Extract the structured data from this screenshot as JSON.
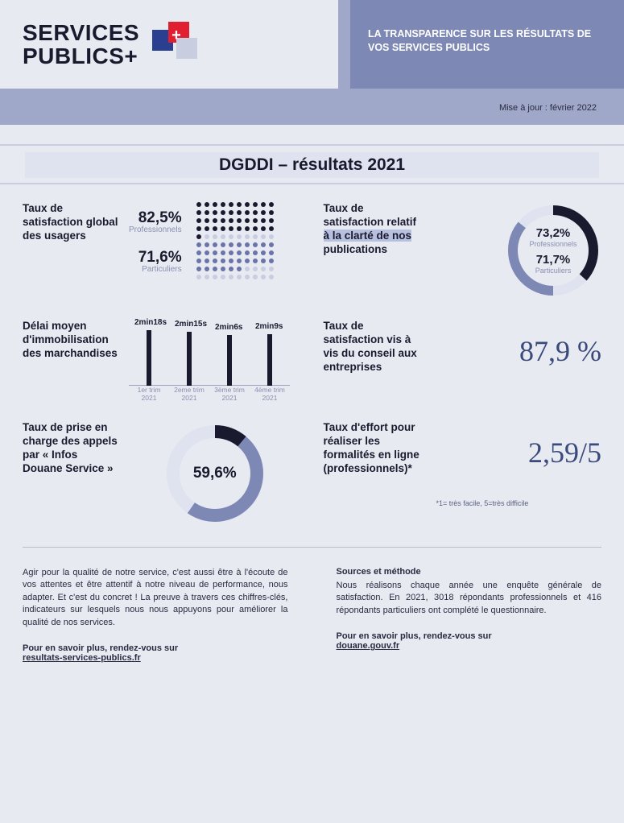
{
  "brand": {
    "line1": "SERVICES",
    "line2": "PUBLICS+"
  },
  "tagline": "LA TRANSPARENCE SUR LES RÉSULTATS DE VOS SERVICES PUBLICS",
  "update": "Mise à jour : février 2022",
  "title": "DGDDI – résultats 2021",
  "colors": {
    "dotFilledPro": "#1a1a2e",
    "dotFilledPart": "#6a74a8",
    "dotEmpty": "#c9cde0",
    "donutPro": "#1a1a2e",
    "donutPart": "#7d88b5",
    "donutBg": "#dfe3f0",
    "bar": "#1a1a2e",
    "bignum": "#3a4a7a"
  },
  "satisfaction_global": {
    "label": "Taux de satisfaction global des usagers",
    "pro_value": "82,5%",
    "pro_label": "Professionnels",
    "part_value": "71,6%",
    "part_label": "Particuliers",
    "pro_pct": 82.5,
    "part_pct": 71.6
  },
  "clarte": {
    "label_pre": "Taux de satisfaction relatif ",
    "label_hl": "à la clarté de nos",
    "label_post": " publications",
    "pro_value": "73,2%",
    "pro_label": "Professionnels",
    "pro_pct": 73.2,
    "part_value": "71,7%",
    "part_label": "Particuliers",
    "part_pct": 71.7
  },
  "delai": {
    "label": "Délai moyen d'immobilisation des marchandises",
    "bars": [
      {
        "xlabel": "1er trim 2021",
        "value_label": "2min18s",
        "seconds": 138
      },
      {
        "xlabel": "2eme trim 2021",
        "value_label": "2min15s",
        "seconds": 135
      },
      {
        "xlabel": "3ème trim 2021",
        "value_label": "2min6s",
        "seconds": 126
      },
      {
        "xlabel": "4ème trim 2021",
        "value_label": "2min9s",
        "seconds": 129
      }
    ],
    "ymax": 140
  },
  "conseil": {
    "label": "Taux de satisfaction vis à vis du conseil aux entreprises",
    "value": "87,9 %"
  },
  "appels": {
    "label": "Taux de prise en charge des appels par « Infos Douane Service »",
    "value": "59,6%",
    "pct": 59.6
  },
  "effort": {
    "label": "Taux d'effort pour réaliser les formalités en ligne (professionnels)*",
    "value": "2,59/5",
    "footnote": "*1= très facile, 5=très difficile"
  },
  "footer": {
    "left_text": "Agir pour la qualité de notre service, c'est aussi être à l'écoute de vos attentes et être attentif à notre niveau de performance, nous adapter. Et c'est du concret ! La preuve à travers ces chiffres-clés, indicateurs sur lesquels nous nous appuyons pour améliorer la qualité de nos services.",
    "left_cta": "Pour en savoir plus, rendez-vous sur",
    "left_link": "resultats-services-publics.fr",
    "right_heading": "Sources et méthode",
    "right_text": "Nous réalisons chaque année une enquête générale de satisfaction. En 2021, 3018 répondants professionnels et 416 répondants particuliers ont complété le questionnaire.",
    "right_cta": "Pour en savoir plus, rendez-vous sur",
    "right_link": "douane.gouv.fr"
  }
}
